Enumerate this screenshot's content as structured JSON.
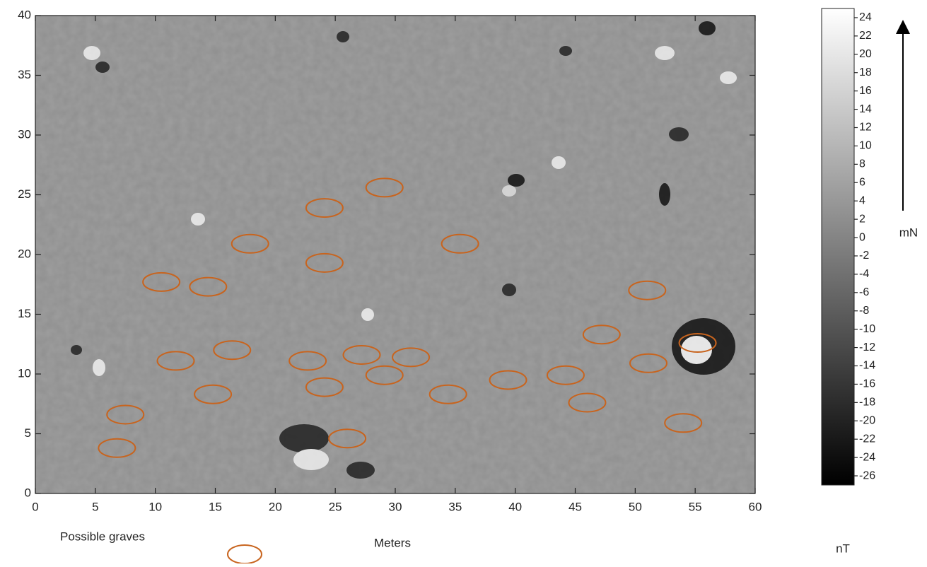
{
  "chart_data": {
    "type": "scatter",
    "x_label": "Meters",
    "north_label": "mN",
    "xlim": [
      0,
      60
    ],
    "xticks": [
      0,
      5,
      10,
      15,
      20,
      25,
      30,
      35,
      40,
      45,
      50,
      55,
      60
    ],
    "ylim": [
      0,
      40
    ],
    "yticks": [
      0,
      5,
      10,
      15,
      20,
      25,
      30,
      35,
      40
    ],
    "series": [
      {
        "name": "Possible graves",
        "color": "#c8641e",
        "x": [
          29.1,
          24.1,
          17.9,
          35.4,
          24.1,
          10.5,
          14.4,
          51.0,
          47.2,
          55.2,
          16.4,
          11.7,
          22.7,
          27.2,
          31.3,
          51.1,
          29.1,
          44.2,
          39.4,
          24.1,
          14.8,
          34.4,
          46.0,
          7.5,
          54.0,
          26.0,
          6.8
        ],
        "values": [
          25.6,
          23.9,
          20.9,
          20.9,
          19.3,
          17.7,
          17.3,
          17.0,
          13.3,
          12.6,
          12.0,
          11.1,
          11.1,
          11.6,
          11.4,
          10.9,
          9.9,
          9.9,
          9.5,
          8.9,
          8.3,
          8.3,
          7.6,
          6.6,
          5.9,
          4.6,
          3.8
        ]
      }
    ],
    "colorbar": {
      "label": "nT",
      "lim": [
        -27,
        25
      ],
      "ticks": [
        24,
        22,
        20,
        18,
        16,
        14,
        12,
        10,
        8,
        6,
        4,
        2,
        0,
        -2,
        -4,
        -6,
        -8,
        -10,
        -12,
        -14,
        -16,
        -18,
        -20,
        -22,
        -24,
        -26
      ]
    }
  }
}
